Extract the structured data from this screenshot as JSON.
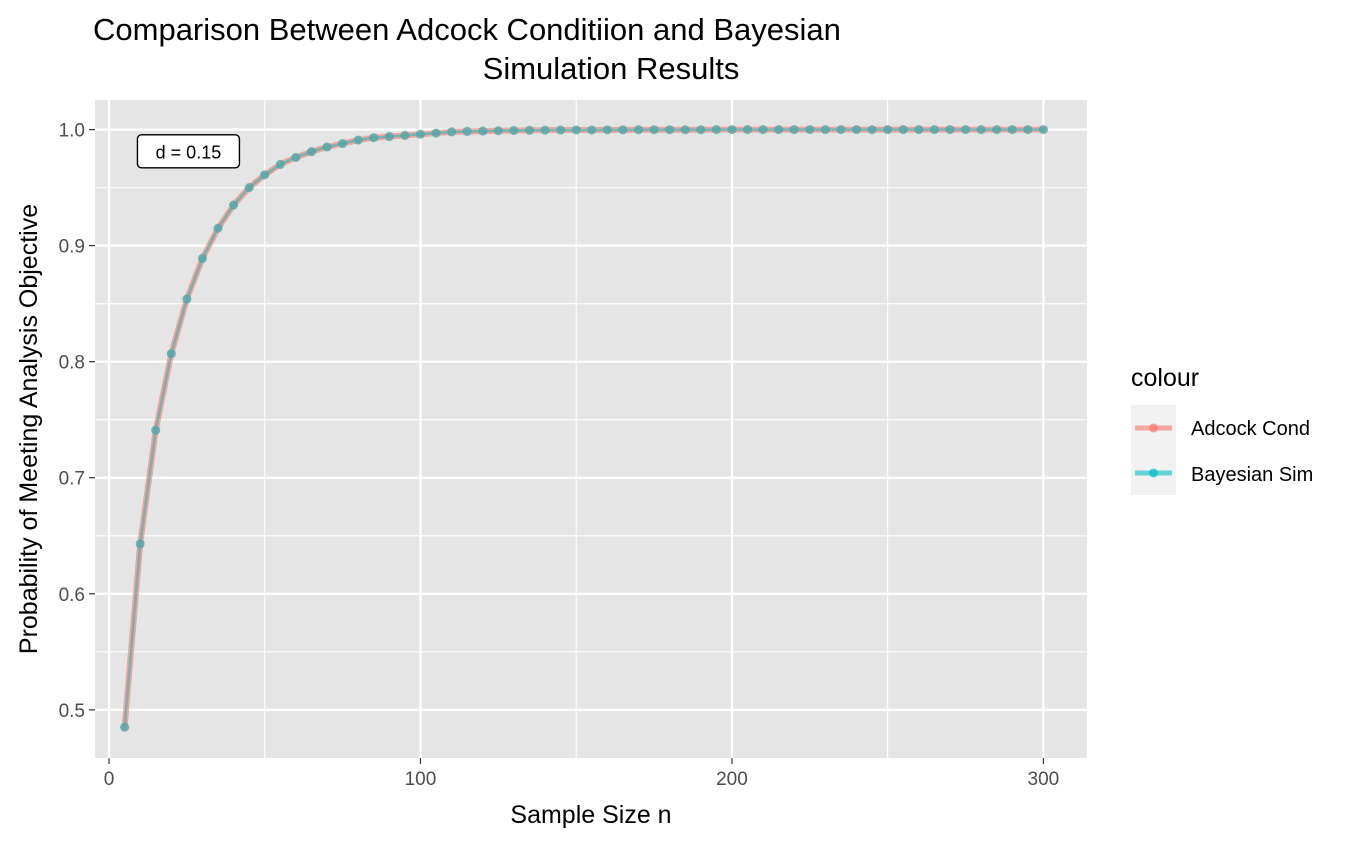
{
  "chart_data": {
    "type": "line",
    "title_lines": [
      "Comparison Between Adcock Conditiion and Bayesian",
      "Simulation Results"
    ],
    "xlabel": "Sample Size n",
    "ylabel": "Probability of Meeting Analysis Objective",
    "xlim": [
      -4.5,
      314
    ],
    "ylim": [
      0.4585,
      1.0255
    ],
    "x_ticks": [
      0,
      100,
      200,
      300
    ],
    "x_tick_labels": [
      "0",
      "100",
      "200",
      "300"
    ],
    "y_ticks": [
      0.5,
      0.6,
      0.7,
      0.8,
      0.9,
      1.0
    ],
    "y_tick_labels": [
      "0.5",
      "0.6",
      "0.7",
      "0.8",
      "0.9",
      "1.0"
    ],
    "annotation": {
      "text": "d = 0.15",
      "x": 25.5,
      "y": 0.9813
    },
    "legend": {
      "title": "colour",
      "position": "right"
    },
    "colors": {
      "adcock": "#F8766D",
      "bayesian": "#00BFC4",
      "panel": "#e5e5e5",
      "grid": "#ffffff"
    },
    "x": [
      5,
      10,
      15,
      20,
      25,
      30,
      35,
      40,
      45,
      50,
      55,
      60,
      65,
      70,
      75,
      80,
      85,
      90,
      95,
      100,
      105,
      110,
      115,
      120,
      125,
      130,
      135,
      140,
      145,
      150,
      155,
      160,
      165,
      170,
      175,
      180,
      185,
      190,
      195,
      200,
      205,
      210,
      215,
      220,
      225,
      230,
      235,
      240,
      245,
      250,
      255,
      260,
      265,
      270,
      275,
      280,
      285,
      290,
      295,
      300
    ],
    "series": [
      {
        "name": "Adcock Cond",
        "color": "#F8766D",
        "values": [
          0.485,
          0.643,
          0.741,
          0.807,
          0.854,
          0.889,
          0.915,
          0.935,
          0.95,
          0.961,
          0.97,
          0.976,
          0.981,
          0.985,
          0.988,
          0.991,
          0.993,
          0.994,
          0.995,
          0.996,
          0.997,
          0.998,
          0.9984,
          0.9987,
          0.999,
          0.9992,
          0.9994,
          0.9995,
          0.9996,
          0.9997,
          0.9997,
          0.9998,
          0.9998,
          0.9999,
          0.9999,
          0.9999,
          0.9999,
          0.9999,
          1.0,
          1.0,
          1.0,
          1.0,
          1.0,
          1.0,
          1.0,
          1.0,
          1.0,
          1.0,
          1.0,
          1.0,
          1.0,
          1.0,
          1.0,
          1.0,
          1.0,
          1.0,
          1.0,
          1.0,
          1.0,
          1.0
        ]
      },
      {
        "name": "Bayesian Sim",
        "color": "#00BFC4",
        "values": [
          0.485,
          0.643,
          0.741,
          0.807,
          0.854,
          0.889,
          0.915,
          0.935,
          0.95,
          0.961,
          0.97,
          0.976,
          0.981,
          0.985,
          0.988,
          0.991,
          0.993,
          0.994,
          0.995,
          0.996,
          0.997,
          0.998,
          0.9984,
          0.9987,
          0.999,
          0.9992,
          0.9994,
          0.9995,
          0.9996,
          0.9997,
          0.9997,
          0.9998,
          0.9998,
          0.9999,
          0.9999,
          0.9999,
          0.9999,
          0.9999,
          1.0,
          1.0,
          1.0,
          1.0,
          1.0,
          1.0,
          1.0,
          1.0,
          1.0,
          1.0,
          1.0,
          1.0,
          1.0,
          1.0,
          1.0,
          1.0,
          1.0,
          1.0,
          1.0,
          1.0,
          1.0,
          1.0
        ]
      }
    ]
  }
}
